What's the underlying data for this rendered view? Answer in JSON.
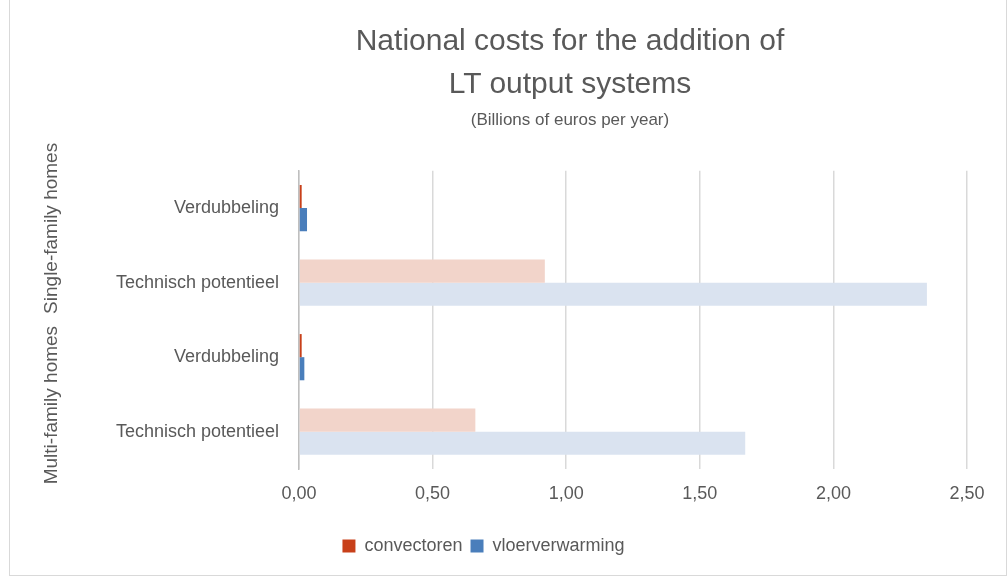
{
  "chart_data": {
    "type": "bar",
    "orientation": "horizontal",
    "title": "National costs for the addition of LT output systems",
    "subtitle": "(Billions of euros per year)",
    "categories": [
      "Verdubbeling",
      "Technisch potentieel",
      "Verdubbeling",
      "Technisch potentieel"
    ],
    "annotations": [
      "Single-family homes",
      "Multi-family homes"
    ],
    "series": [
      {
        "name": "convectoren",
        "color": "#c8401a",
        "colors": [
          "#c8401a",
          "#f2d4ca",
          "#c8401a",
          "#f2d4ca"
        ],
        "values": [
          0.01,
          0.92,
          0.01,
          0.66
        ]
      },
      {
        "name": "vloerverwarming",
        "color": "#4a7ebb",
        "colors": [
          "#4a7ebb",
          "#dae3f0",
          "#4a7ebb",
          "#dae3f0"
        ],
        "values": [
          0.03,
          2.35,
          0.02,
          1.67
        ]
      }
    ],
    "xlim": [
      0,
      2.5
    ],
    "xticks": [
      {
        "value": 0,
        "label": "0,00"
      },
      {
        "value": 0.5,
        "label": "0,50"
      },
      {
        "value": 1,
        "label": "1,00"
      },
      {
        "value": 1.5,
        "label": "1,50"
      },
      {
        "value": 2,
        "label": "2,00"
      },
      {
        "value": 2.5,
        "label": "2,50"
      }
    ],
    "grid": "x",
    "legend": "bottom"
  }
}
